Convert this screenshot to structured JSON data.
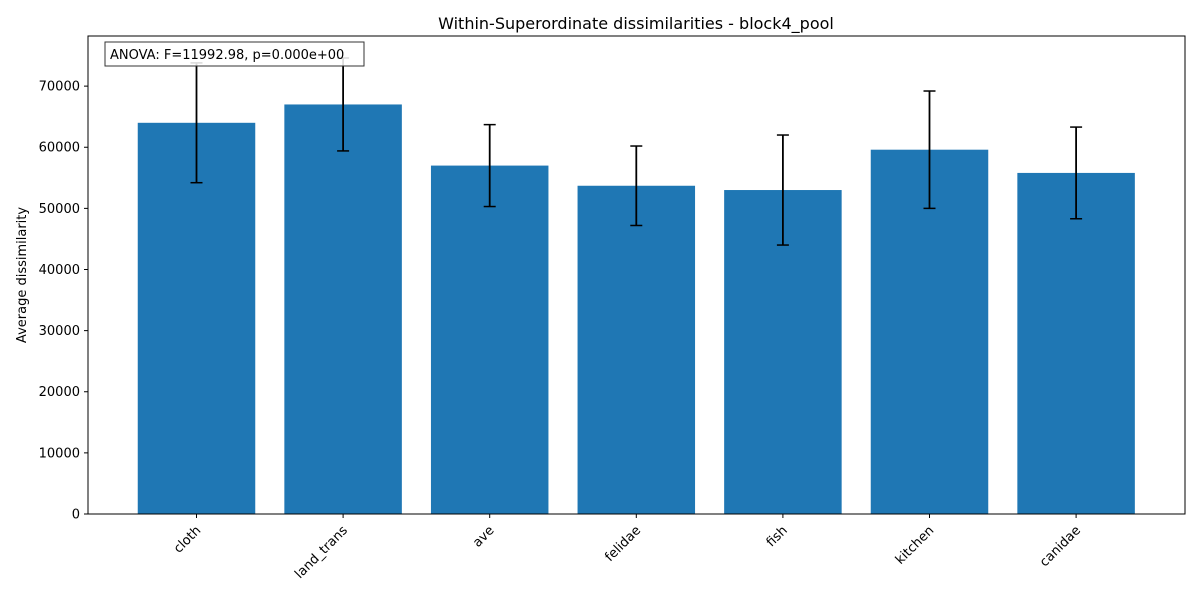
{
  "chart_data": {
    "type": "bar",
    "title": "Within-Superordinate dissimilarities - block4_pool",
    "xlabel": "",
    "ylabel": "Average dissimilarity",
    "categories": [
      "cloth",
      "land_trans",
      "ave",
      "felidae",
      "fish",
      "kitchen",
      "canidae"
    ],
    "values": [
      64000,
      67000,
      57000,
      53700,
      53000,
      59600,
      55800
    ],
    "error": [
      9800,
      7600,
      6700,
      6500,
      9000,
      9600,
      7500
    ],
    "ylim": [
      0,
      78200
    ],
    "yticks": [
      0,
      10000,
      20000,
      30000,
      40000,
      50000,
      60000,
      70000
    ],
    "bar_color": "#1f77b4",
    "annotation": "ANOVA: F=11992.98, p=0.000e+00",
    "grid": false
  }
}
